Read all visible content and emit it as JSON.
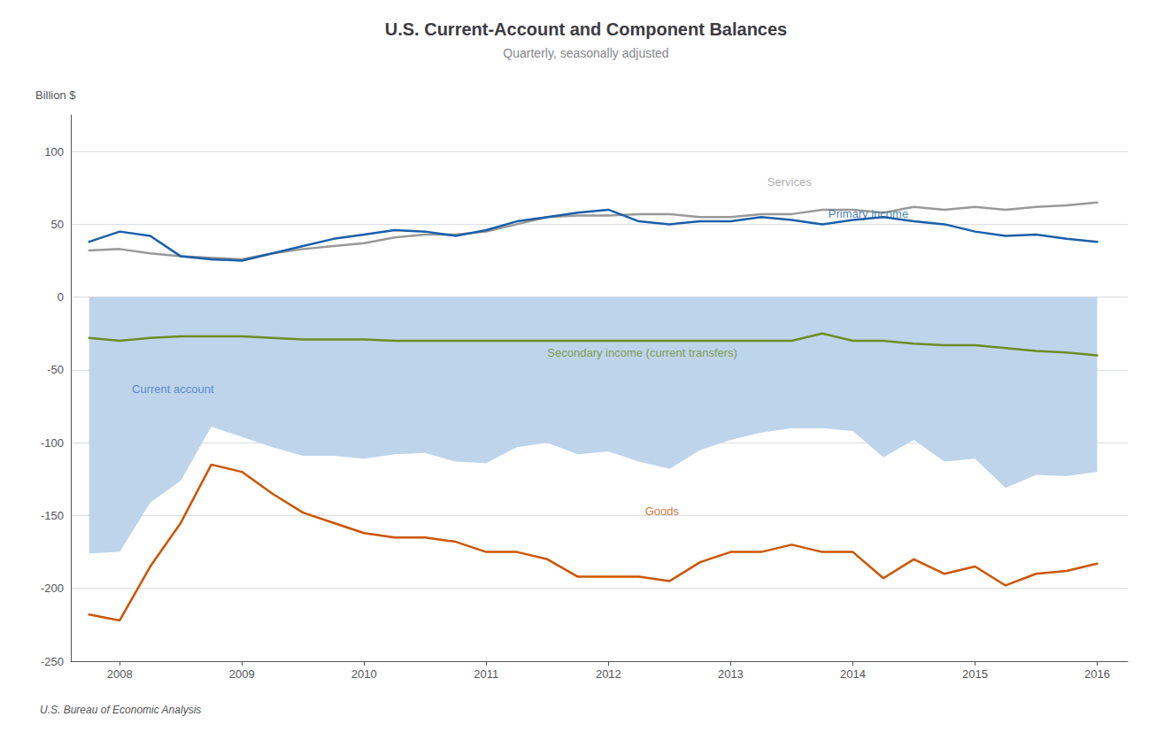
{
  "chart_data": {
    "type": "line",
    "title": "U.S. Current-Account and Component Balances",
    "subtitle": "Quarterly, seasonally adjusted",
    "ylabel": "Billion $",
    "source": "U.S. Bureau of Economic Analysis",
    "x": [
      2007.75,
      2008.0,
      2008.25,
      2008.5,
      2008.75,
      2009.0,
      2009.25,
      2009.5,
      2009.75,
      2010.0,
      2010.25,
      2010.5,
      2010.75,
      2011.0,
      2011.25,
      2011.5,
      2011.75,
      2012.0,
      2012.25,
      2012.5,
      2012.75,
      2013.0,
      2013.25,
      2013.5,
      2013.75,
      2014.0,
      2014.25,
      2014.5,
      2014.75,
      2015.0,
      2015.25,
      2015.5,
      2015.75,
      2016.0
    ],
    "xlim": [
      2007.6,
      2016.25
    ],
    "xticks": [
      2008,
      2009,
      2010,
      2011,
      2012,
      2013,
      2014,
      2015,
      2016
    ],
    "ylim": [
      -250,
      125
    ],
    "yticks": [
      -250,
      -200,
      -150,
      -100,
      -50,
      0,
      50,
      100
    ],
    "grid": true,
    "series": [
      {
        "name": "Current account",
        "type": "area",
        "color": "#bed4eb",
        "values": [
          -176,
          -175,
          -141,
          -126,
          -89,
          -96,
          -103,
          -109,
          -109,
          -111,
          -108,
          -107,
          -113,
          -114,
          -103,
          -100,
          -108,
          -106,
          -113,
          -118,
          -105,
          -98,
          -93,
          -90,
          -90,
          -92,
          -110,
          -98,
          -113,
          -111,
          -131,
          -122,
          -123,
          -120
        ]
      },
      {
        "name": "Services",
        "type": "line",
        "color": "#999999",
        "values": [
          32,
          33,
          30,
          28,
          27,
          26,
          30,
          33,
          35,
          37,
          41,
          43,
          43,
          45,
          50,
          55,
          56,
          56,
          57,
          57,
          55,
          55,
          57,
          57,
          60,
          60,
          58,
          62,
          60,
          62,
          60,
          62,
          63,
          65
        ]
      },
      {
        "name": "Primary income",
        "type": "line",
        "color": "#1a5fa8",
        "values": [
          38,
          45,
          42,
          28,
          26,
          25,
          30,
          35,
          40,
          43,
          46,
          45,
          42,
          46,
          52,
          55,
          58,
          60,
          52,
          50,
          52,
          52,
          55,
          53,
          50,
          53,
          55,
          52,
          50,
          45,
          42,
          43,
          40,
          38
        ]
      },
      {
        "name": "Secondary income (current transfers)",
        "type": "line",
        "color": "#6b8e23",
        "values": [
          -28,
          -30,
          -28,
          -27,
          -27,
          -27,
          -28,
          -29,
          -29,
          -29,
          -30,
          -30,
          -30,
          -30,
          -30,
          -30,
          -30,
          -30,
          -30,
          -30,
          -30,
          -30,
          -30,
          -30,
          -25,
          -30,
          -30,
          -32,
          -33,
          -33,
          -35,
          -37,
          -38,
          -40
        ]
      },
      {
        "name": "Goods",
        "type": "line",
        "color": "#cc5500",
        "values": [
          -218,
          -222,
          -185,
          -155,
          -115,
          -120,
          -135,
          -148,
          -155,
          -162,
          -165,
          -165,
          -168,
          -175,
          -175,
          -180,
          -192,
          -192,
          -192,
          -195,
          -182,
          -175,
          -175,
          -170,
          -175,
          -175,
          -193,
          -180,
          -190,
          -185,
          -198,
          -190,
          -188,
          -183
        ]
      }
    ],
    "annotations": [
      {
        "text": "Services",
        "x": 2013.3,
        "y": 79,
        "color": "#999999"
      },
      {
        "text": "Primary income",
        "x": 2013.8,
        "y": 57,
        "color": "#1a5fa8"
      },
      {
        "text": "Current account",
        "x": 2008.1,
        "y": -63,
        "color": "#4472C4"
      },
      {
        "text": "Secondary income (current transfers)",
        "x": 2011.5,
        "y": -38,
        "color": "#6b8e23"
      },
      {
        "text": "Goods",
        "x": 2012.3,
        "y": -147,
        "color": "#cc5500"
      }
    ]
  }
}
